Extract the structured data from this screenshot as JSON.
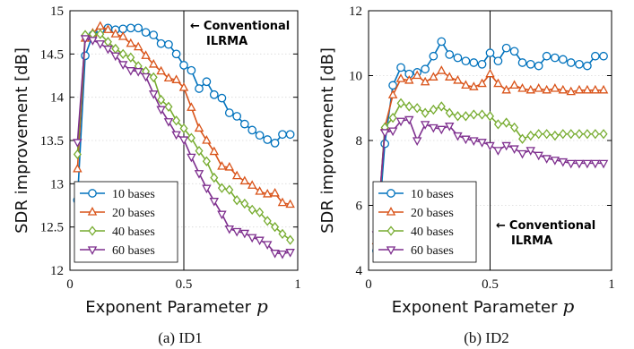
{
  "chart_data": [
    {
      "type": "line",
      "caption": "(a) ID1",
      "xlabel": "Exponent Parameter",
      "xlabel_symbol": "p",
      "ylabel": "SDR improvement [dB]",
      "xlim": [
        0,
        1
      ],
      "ylim": [
        12,
        15
      ],
      "xticks": [
        0,
        0.5,
        1
      ],
      "xtick_labels": [
        "0",
        "0.5",
        "1"
      ],
      "yticks": [
        12,
        12.5,
        13,
        13.5,
        14,
        14.5,
        15
      ],
      "ytick_labels": [
        "12",
        "12.5",
        "13",
        "13.5",
        "14",
        "14.5",
        "15"
      ],
      "grid": true,
      "legend_position": "bottom-left",
      "reference_line": {
        "x": 0.5,
        "label": "Conventional ILRMA",
        "label_line1": "Conventional",
        "label_line2": "ILRMA",
        "arrow": "←"
      },
      "x": [
        0.033,
        0.067,
        0.1,
        0.133,
        0.167,
        0.2,
        0.233,
        0.267,
        0.3,
        0.333,
        0.367,
        0.4,
        0.433,
        0.467,
        0.5,
        0.533,
        0.567,
        0.6,
        0.633,
        0.667,
        0.7,
        0.733,
        0.767,
        0.8,
        0.833,
        0.867,
        0.9,
        0.933,
        0.967
      ],
      "series": [
        {
          "name": "10 bases",
          "color": "#0072BD",
          "marker": "circle",
          "values": [
            12.81,
            14.48,
            14.72,
            14.78,
            14.8,
            14.78,
            14.79,
            14.8,
            14.8,
            14.75,
            14.72,
            14.62,
            14.61,
            14.5,
            14.37,
            14.31,
            14.1,
            14.18,
            14.03,
            13.99,
            13.82,
            13.78,
            13.69,
            13.62,
            13.56,
            13.51,
            13.47,
            13.57,
            13.57
          ]
        },
        {
          "name": "20 bases",
          "color": "#D95319",
          "marker": "triangle-up",
          "values": [
            13.17,
            14.68,
            14.74,
            14.82,
            14.78,
            14.73,
            14.7,
            14.62,
            14.58,
            14.48,
            14.38,
            14.3,
            14.22,
            14.2,
            14.11,
            13.88,
            13.64,
            13.5,
            13.37,
            13.2,
            13.19,
            13.09,
            13.03,
            12.98,
            12.91,
            12.88,
            12.89,
            12.78,
            12.76
          ]
        },
        {
          "name": "40 bases",
          "color": "#77AC30",
          "marker": "diamond",
          "values": [
            13.34,
            14.72,
            14.73,
            14.73,
            14.64,
            14.56,
            14.5,
            14.46,
            14.36,
            14.3,
            14.23,
            13.97,
            13.89,
            13.73,
            13.64,
            13.53,
            13.38,
            13.26,
            13.07,
            12.95,
            12.93,
            12.81,
            12.77,
            12.7,
            12.67,
            12.57,
            12.5,
            12.42,
            12.35
          ]
        },
        {
          "name": "60 bases",
          "color": "#7E2F8E",
          "marker": "triangle-down",
          "values": [
            13.48,
            14.68,
            14.66,
            14.62,
            14.56,
            14.48,
            14.38,
            14.31,
            14.3,
            14.24,
            14.04,
            13.86,
            13.72,
            13.57,
            13.51,
            13.31,
            13.12,
            12.95,
            12.8,
            12.65,
            12.48,
            12.45,
            12.43,
            12.38,
            12.35,
            12.3,
            12.2,
            12.19,
            12.21
          ]
        }
      ]
    },
    {
      "type": "line",
      "caption": "(b) ID2",
      "xlabel": "Exponent Parameter",
      "xlabel_symbol": "p",
      "ylabel": "SDR improvement [dB]",
      "xlim": [
        0,
        1
      ],
      "ylim": [
        4,
        12
      ],
      "xticks": [
        0,
        0.5,
        1
      ],
      "xtick_labels": [
        "0",
        "0.5",
        "1"
      ],
      "yticks": [
        4,
        6,
        8,
        10,
        12
      ],
      "ytick_labels": [
        "4",
        "6",
        "8",
        "10",
        "12"
      ],
      "grid": true,
      "legend_position": "bottom-left",
      "reference_line": {
        "x": 0.5,
        "label": "Conventional ILRMA",
        "label_line1": "Conventional",
        "label_line2": "ILRMA",
        "arrow": "←"
      },
      "x": [
        0.033,
        0.067,
        0.1,
        0.133,
        0.167,
        0.2,
        0.233,
        0.267,
        0.3,
        0.333,
        0.367,
        0.4,
        0.433,
        0.467,
        0.5,
        0.533,
        0.567,
        0.6,
        0.633,
        0.667,
        0.7,
        0.733,
        0.767,
        0.8,
        0.833,
        0.867,
        0.9,
        0.933,
        0.967
      ],
      "series": [
        {
          "name": "10 bases",
          "color": "#0072BD",
          "marker": "circle",
          "values": [
            4.6,
            7.9,
            9.7,
            10.25,
            10.05,
            10.1,
            10.2,
            10.6,
            11.05,
            10.65,
            10.55,
            10.45,
            10.4,
            10.35,
            10.7,
            10.45,
            10.85,
            10.75,
            10.4,
            10.35,
            10.3,
            10.6,
            10.55,
            10.5,
            10.4,
            10.35,
            10.3,
            10.6,
            10.6
          ]
        },
        {
          "name": "20 bases",
          "color": "#D95319",
          "marker": "triangle-up",
          "values": [
            4.9,
            8.4,
            9.4,
            9.9,
            9.85,
            10.0,
            9.8,
            9.95,
            10.15,
            9.95,
            9.85,
            9.7,
            9.65,
            9.75,
            10.05,
            9.75,
            9.55,
            9.7,
            9.6,
            9.55,
            9.6,
            9.55,
            9.6,
            9.55,
            9.5,
            9.55,
            9.55,
            9.55,
            9.55
          ]
        },
        {
          "name": "40 bases",
          "color": "#77AC30",
          "marker": "diamond",
          "values": [
            4.8,
            8.4,
            8.7,
            9.15,
            9.05,
            9.0,
            8.85,
            8.95,
            9.05,
            8.85,
            8.75,
            8.75,
            8.8,
            8.8,
            8.75,
            8.5,
            8.55,
            8.4,
            8.05,
            8.15,
            8.2,
            8.2,
            8.15,
            8.2,
            8.2,
            8.2,
            8.2,
            8.2,
            8.2
          ]
        },
        {
          "name": "60 bases",
          "color": "#7E2F8E",
          "marker": "triangle-down",
          "values": [
            5.1,
            8.25,
            8.3,
            8.6,
            8.65,
            8.0,
            8.5,
            8.4,
            8.35,
            8.45,
            8.15,
            8.05,
            8.0,
            7.95,
            7.85,
            7.7,
            7.85,
            7.75,
            7.6,
            7.7,
            7.55,
            7.45,
            7.4,
            7.35,
            7.3,
            7.3,
            7.3,
            7.3,
            7.3
          ]
        }
      ]
    }
  ]
}
